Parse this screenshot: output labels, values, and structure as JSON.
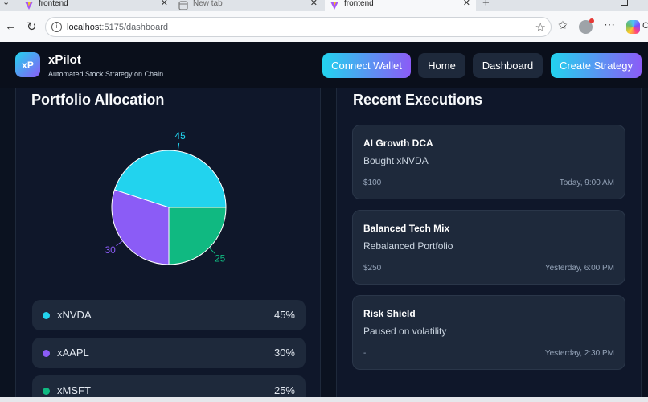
{
  "browser": {
    "tabs": [
      {
        "title": "frontend",
        "active": false
      },
      {
        "title": "New tab",
        "active": false
      },
      {
        "title": "frontend",
        "active": true
      }
    ],
    "url_host": "localhost",
    "url_path": ":5175/dashboard",
    "copilot_letter": "C"
  },
  "app": {
    "logo_text": "xP",
    "title": "xPilot",
    "subtitle": "Automated Stock Strategy on Chain",
    "nav": {
      "connect_wallet": "Connect Wallet",
      "home": "Home",
      "dashboard": "Dashboard",
      "create_strategy": "Create Strategy"
    }
  },
  "portfolio": {
    "title": "Portfolio Allocation",
    "chart_data": {
      "type": "pie",
      "categories": [
        "xNVDA",
        "xAAPL",
        "xMSFT"
      ],
      "values": [
        45,
        30,
        25
      ],
      "colors": [
        "#22d3ee",
        "#8b5cf6",
        "#10b981"
      ],
      "data_labels": [
        "45",
        "30",
        "25"
      ]
    },
    "allocations": [
      {
        "name": "xNVDA",
        "pct": "45%",
        "color": "#22d3ee"
      },
      {
        "name": "xAAPL",
        "pct": "30%",
        "color": "#8b5cf6"
      },
      {
        "name": "xMSFT",
        "pct": "25%",
        "color": "#10b981"
      }
    ]
  },
  "executions": {
    "title": "Recent Executions",
    "items": [
      {
        "strategy": "AI Growth DCA",
        "action": "Bought xNVDA",
        "amount": "$100",
        "time": "Today, 9:00 AM"
      },
      {
        "strategy": "Balanced Tech Mix",
        "action": "Rebalanced Portfolio",
        "amount": "$250",
        "time": "Yesterday, 6:00 PM"
      },
      {
        "strategy": "Risk Shield",
        "action": "Paused on volatility",
        "amount": "-",
        "time": "Yesterday, 2:30 PM"
      }
    ]
  }
}
